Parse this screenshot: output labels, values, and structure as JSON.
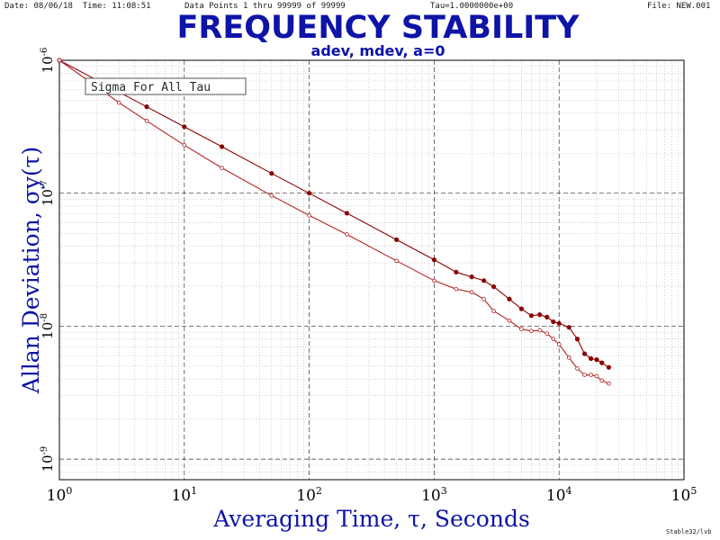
{
  "header": {
    "date": "Date: 08/06/18",
    "time": "Time: 11:08:51",
    "data_points": "Data Points 1 thru 99999 of 99999",
    "tau": "Tau=1.0000000e+00",
    "file": "File: NEW.001"
  },
  "footer": "Stable32/lvb",
  "colors": {
    "title": "#0d14a6",
    "adev": "#8b0000",
    "mdev": "#b22222"
  },
  "chart_data": {
    "type": "line",
    "title": "FREQUENCY STABILITY",
    "subtitle": "adev, mdev, a=0",
    "xlabel": "Averaging Time, τ, Seconds",
    "ylabel": "Allan Deviation, σy(τ)",
    "xscale": "log",
    "yscale": "log",
    "xlim": [
      1,
      100000
    ],
    "ylim": [
      7e-10,
      1e-06
    ],
    "x_ticks": [
      {
        "base": "10",
        "exp": "0"
      },
      {
        "base": "10",
        "exp": "1"
      },
      {
        "base": "10",
        "exp": "2"
      },
      {
        "base": "10",
        "exp": "3"
      },
      {
        "base": "10",
        "exp": "4"
      },
      {
        "base": "10",
        "exp": "5"
      }
    ],
    "y_ticks": [
      {
        "base": "10",
        "exp": "-6",
        "value": 1e-06
      },
      {
        "base": "10",
        "exp": "-7",
        "value": 1e-07
      },
      {
        "base": "10",
        "exp": "-8",
        "value": 1e-08
      },
      {
        "base": "10",
        "exp": "-9",
        "value": 1e-09
      }
    ],
    "grid": true,
    "annotation": "Sigma For All Tau",
    "series": [
      {
        "color": "#8b0000",
        "marker": "filled-circle",
        "x": [
          1,
          2,
          3,
          5,
          10,
          20,
          50,
          100,
          200,
          500,
          1000,
          1500,
          2000,
          2500,
          3000,
          4000,
          5000,
          6000,
          7000,
          8000,
          9000,
          10000,
          12000,
          14000,
          16000,
          18000,
          20000,
          22000,
          25000
        ],
        "y": [
          1e-06,
          7.07e-07,
          5.77e-07,
          4.47e-07,
          3.16e-07,
          2.24e-07,
          1.41e-07,
          1e-07,
          7.07e-08,
          4.47e-08,
          3.16e-08,
          2.55e-08,
          2.35e-08,
          2.2e-08,
          1.98e-08,
          1.6e-08,
          1.35e-08,
          1.2e-08,
          1.22e-08,
          1.17e-08,
          1.08e-08,
          1.05e-08,
          9.8e-09,
          8e-09,
          6.2e-09,
          5.7e-09,
          5.6e-09,
          5.3e-09,
          4.9e-09
        ]
      },
      {
        "color": "#b22222",
        "marker": "hollow-circle",
        "x": [
          1,
          2,
          3,
          5,
          10,
          20,
          50,
          100,
          200,
          500,
          1000,
          1500,
          2000,
          2500,
          3000,
          4000,
          5000,
          6000,
          7000,
          8000,
          9000,
          10000,
          12000,
          14000,
          16000,
          18000,
          20000,
          22000,
          25000
        ],
        "y": [
          1e-06,
          6.3e-07,
          4.8e-07,
          3.5e-07,
          2.3e-07,
          1.55e-07,
          9.6e-08,
          6.8e-08,
          4.9e-08,
          3.1e-08,
          2.2e-08,
          1.9e-08,
          1.8e-08,
          1.6e-08,
          1.3e-08,
          1.1e-08,
          9.5e-09,
          9.2e-09,
          9.3e-09,
          8.8e-09,
          8e-09,
          7.3e-09,
          5.8e-09,
          4.8e-09,
          4.3e-09,
          4.3e-09,
          4.2e-09,
          3.9e-09,
          3.7e-09
        ]
      }
    ]
  }
}
